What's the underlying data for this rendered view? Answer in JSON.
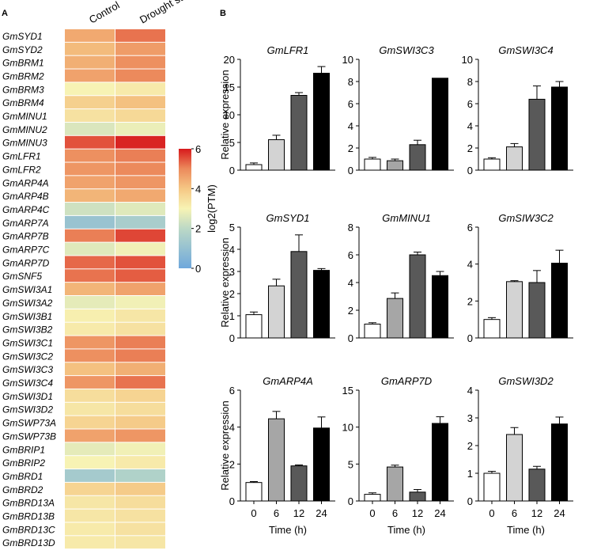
{
  "panels": {
    "a_label": "A",
    "b_label": "B"
  },
  "chart_data": [
    {
      "type": "heatmap",
      "panel": "A",
      "columns": [
        "Control",
        "Drought stress"
      ],
      "rows": [
        "GmSYD1",
        "GmSYD2",
        "GmBRM1",
        "GmBRM2",
        "GmBRM3",
        "GmBRM4",
        "GmMINU1",
        "GmMINU2",
        "GmMINU3",
        "GmLFR1",
        "GmLFR2",
        "GmARP4A",
        "GmARP4B",
        "GmARP4C",
        "GmARP7A",
        "GmARP7B",
        "GmARP7C",
        "GmARP7D",
        "GmSNF5",
        "GmSWI3A1",
        "GmSWI3A2",
        "GmSWI3B1",
        "GmSWI3B2",
        "GmSWI3C1",
        "GmSWI3C2",
        "GmSWI3C3",
        "GmSWI3C4",
        "GmSWI3D1",
        "GmSWI3D2",
        "GmSWP73A",
        "GmSWP73B",
        "GmBRIP1",
        "GmBRIP2",
        "GmBRD1",
        "GmBRD2",
        "GmBRD13A",
        "GmBRD13B",
        "GmBRD13C",
        "GmBRD13D"
      ],
      "values": [
        [
          4.5,
          5.2
        ],
        [
          4.2,
          4.7
        ],
        [
          4.4,
          4.9
        ],
        [
          4.6,
          5.0
        ],
        [
          3.0,
          3.2
        ],
        [
          3.8,
          4.1
        ],
        [
          3.4,
          3.6
        ],
        [
          2.5,
          2.8
        ],
        [
          5.5,
          5.9
        ],
        [
          4.9,
          5.1
        ],
        [
          4.8,
          5.0
        ],
        [
          4.6,
          4.8
        ],
        [
          4.3,
          4.5
        ],
        [
          2.3,
          2.6
        ],
        [
          1.1,
          1.5
        ],
        [
          5.1,
          5.6
        ],
        [
          2.6,
          2.9
        ],
        [
          5.3,
          5.5
        ],
        [
          5.2,
          5.4
        ],
        [
          4.3,
          4.6
        ],
        [
          2.7,
          2.9
        ],
        [
          3.1,
          3.3
        ],
        [
          3.2,
          3.4
        ],
        [
          4.8,
          5.1
        ],
        [
          4.9,
          5.1
        ],
        [
          4.1,
          4.4
        ],
        [
          4.8,
          5.2
        ],
        [
          3.5,
          3.7
        ],
        [
          3.3,
          3.5
        ],
        [
          3.7,
          3.9
        ],
        [
          4.6,
          4.8
        ],
        [
          2.7,
          2.9
        ],
        [
          3.0,
          3.2
        ],
        [
          1.4,
          1.7
        ],
        [
          3.7,
          3.9
        ],
        [
          3.3,
          3.5
        ],
        [
          3.3,
          3.4
        ],
        [
          3.2,
          3.4
        ],
        [
          3.2,
          3.3
        ]
      ],
      "colorbar": {
        "label": "log2(PTM)",
        "ticks": [
          "0",
          "2",
          "4",
          "6"
        ],
        "range": [
          0,
          6
        ]
      }
    },
    {
      "type": "bar",
      "panel": "B",
      "title": "GmLFR1",
      "categories": [
        "0",
        "6",
        "12",
        "24"
      ],
      "values": [
        1.0,
        5.5,
        13.5,
        17.5
      ],
      "errors": [
        0.3,
        0.8,
        0.5,
        1.2
      ],
      "colors": [
        "#ffffff",
        "#d3d3d3",
        "#595959",
        "#000000"
      ],
      "ylim": [
        0,
        20
      ],
      "yticks": [
        "0",
        "5",
        "10",
        "15",
        "20"
      ],
      "ylabel": "Relative expression",
      "xlabel": ""
    },
    {
      "type": "bar",
      "panel": "B",
      "title": "GmSWI3C3",
      "categories": [
        "0",
        "6",
        "12",
        "24"
      ],
      "values": [
        1.0,
        0.85,
        2.3,
        8.3
      ],
      "errors": [
        0.15,
        0.15,
        0.4,
        0.0
      ],
      "colors": [
        "#ffffff",
        "#a6a6a6",
        "#595959",
        "#000000"
      ],
      "ylim": [
        0,
        10
      ],
      "yticks": [
        "0",
        "2",
        "4",
        "6",
        "8",
        "10"
      ],
      "ylabel": "",
      "xlabel": ""
    },
    {
      "type": "bar",
      "panel": "B",
      "title": "GmSWI3C4",
      "categories": [
        "0",
        "6",
        "12",
        "24"
      ],
      "values": [
        1.0,
        2.1,
        6.4,
        7.5
      ],
      "errors": [
        0.12,
        0.3,
        1.2,
        0.5
      ],
      "colors": [
        "#ffffff",
        "#d3d3d3",
        "#595959",
        "#000000"
      ],
      "ylim": [
        0,
        10
      ],
      "yticks": [
        "0",
        "2",
        "4",
        "6",
        "8",
        "10"
      ],
      "ylabel": "",
      "xlabel": ""
    },
    {
      "type": "bar",
      "panel": "B",
      "title": "GmSYD1",
      "categories": [
        "0",
        "6",
        "12",
        "24"
      ],
      "values": [
        1.05,
        2.35,
        3.9,
        3.05
      ],
      "errors": [
        0.12,
        0.3,
        0.75,
        0.08
      ],
      "colors": [
        "#ffffff",
        "#d3d3d3",
        "#595959",
        "#000000"
      ],
      "ylim": [
        0,
        5
      ],
      "yticks": [
        "0",
        "1",
        "2",
        "3",
        "4",
        "5"
      ],
      "ylabel": "Relative expression",
      "xlabel": ""
    },
    {
      "type": "bar",
      "panel": "B",
      "title": "GmMINU1",
      "categories": [
        "0",
        "6",
        "12",
        "24"
      ],
      "values": [
        1.0,
        2.85,
        6.0,
        4.5
      ],
      "errors": [
        0.1,
        0.4,
        0.2,
        0.3
      ],
      "colors": [
        "#ffffff",
        "#a6a6a6",
        "#595959",
        "#000000"
      ],
      "ylim": [
        0,
        8
      ],
      "yticks": [
        "0",
        "2",
        "4",
        "6",
        "8"
      ],
      "ylabel": "",
      "xlabel": ""
    },
    {
      "type": "bar",
      "panel": "B",
      "title": "GmSIW3C2",
      "categories": [
        "0",
        "6",
        "12",
        "24"
      ],
      "values": [
        1.0,
        3.05,
        3.0,
        4.05
      ],
      "errors": [
        0.1,
        0.05,
        0.65,
        0.7
      ],
      "colors": [
        "#ffffff",
        "#d3d3d3",
        "#595959",
        "#000000"
      ],
      "ylim": [
        0,
        6
      ],
      "yticks": [
        "0",
        "2",
        "4",
        "6"
      ],
      "ylabel": "",
      "xlabel": ""
    },
    {
      "type": "bar",
      "panel": "B",
      "title": "GmARP4A",
      "categories": [
        "0",
        "6",
        "12",
        "24"
      ],
      "values": [
        1.0,
        4.45,
        1.9,
        3.95
      ],
      "errors": [
        0.05,
        0.4,
        0.05,
        0.6
      ],
      "colors": [
        "#ffffff",
        "#a6a6a6",
        "#595959",
        "#000000"
      ],
      "ylim": [
        0,
        6
      ],
      "yticks": [
        "0",
        "2",
        "4",
        "6"
      ],
      "ylabel": "Relative expression",
      "xlabel": "Time (h)"
    },
    {
      "type": "bar",
      "panel": "B",
      "title": "GmARP7D",
      "categories": [
        "0",
        "6",
        "12",
        "24"
      ],
      "values": [
        0.9,
        4.6,
        1.2,
        10.5
      ],
      "errors": [
        0.2,
        0.25,
        0.35,
        0.9
      ],
      "colors": [
        "#ffffff",
        "#a6a6a6",
        "#595959",
        "#000000"
      ],
      "ylim": [
        0,
        15
      ],
      "yticks": [
        "0",
        "5",
        "10",
        "15"
      ],
      "ylabel": "",
      "xlabel": "Time (h)"
    },
    {
      "type": "bar",
      "panel": "B",
      "title": "GmSWI3D2",
      "categories": [
        "0",
        "6",
        "12",
        "24"
      ],
      "values": [
        1.0,
        2.4,
        1.15,
        2.78
      ],
      "errors": [
        0.07,
        0.25,
        0.1,
        0.25
      ],
      "colors": [
        "#ffffff",
        "#d3d3d3",
        "#595959",
        "#000000"
      ],
      "ylim": [
        0,
        4
      ],
      "yticks": [
        "0",
        "1",
        "2",
        "3",
        "4"
      ],
      "ylabel": "",
      "xlabel": "Time (h)"
    }
  ]
}
